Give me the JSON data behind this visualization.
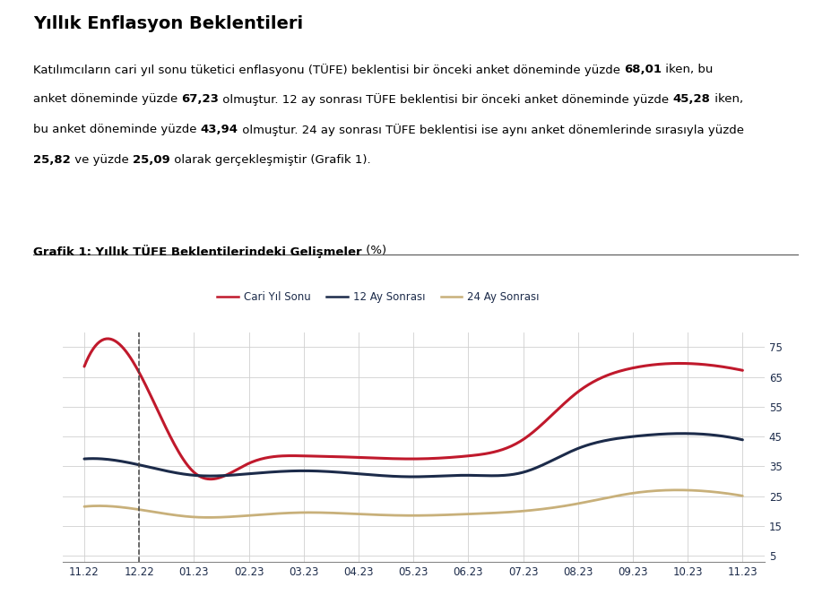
{
  "title": "Yıllık Enflasyon Beklentileri",
  "graph_title_bold": "Grafik 1: Yıllık TÜFE Beklentilerindeki Gelişmeler",
  "graph_title_normal": " (%)",
  "x_labels": [
    "11.22",
    "12.22",
    "01.23",
    "02.23",
    "03.23",
    "04.23",
    "05.23",
    "06.23",
    "07.23",
    "08.23",
    "09.23",
    "10.23",
    "11.23"
  ],
  "y_ticks": [
    5,
    15,
    25,
    35,
    45,
    55,
    65,
    75
  ],
  "ylim": [
    3,
    80
  ],
  "series": {
    "cari_yil_sonu": {
      "label": "Cari Yıl Sonu",
      "color": "#c0192c",
      "linewidth": 2.2,
      "values": [
        68.5,
        66.5,
        33.0,
        36.0,
        38.5,
        38.0,
        37.5,
        38.5,
        44.0,
        60.0,
        68.0,
        69.5,
        67.2
      ]
    },
    "ay_12_sonrasi": {
      "label": "12 Ay Sonrası",
      "color": "#1c2b4a",
      "linewidth": 2.2,
      "values": [
        37.5,
        35.5,
        32.0,
        32.5,
        33.5,
        32.5,
        31.5,
        32.0,
        33.0,
        41.0,
        45.0,
        46.0,
        43.9
      ]
    },
    "ay_24_sonrasi": {
      "label": "24 Ay Sonrası",
      "color": "#c8b07a",
      "linewidth": 2.0,
      "values": [
        21.5,
        20.5,
        18.0,
        18.5,
        19.5,
        19.0,
        18.5,
        19.0,
        20.0,
        22.5,
        26.0,
        27.0,
        25.1
      ]
    }
  },
  "dashed_vline_x": 1,
  "background_color": "#ffffff",
  "grid_color": "#d0d0d0",
  "tick_color": "#1c2b4a",
  "font_color": "#1c2b4a"
}
